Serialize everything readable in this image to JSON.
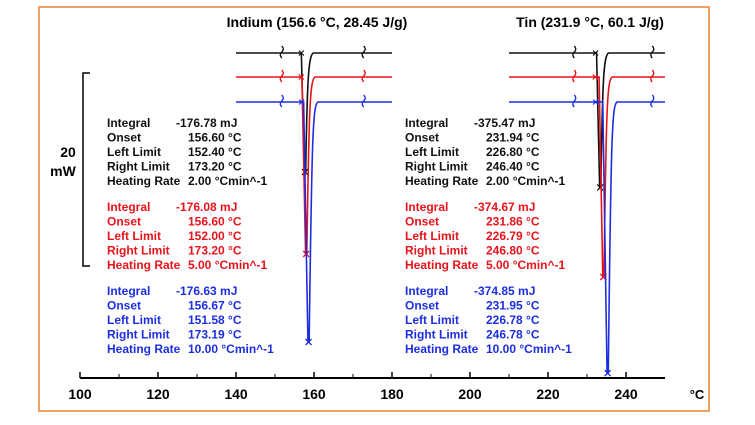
{
  "chart_data": {
    "type": "line",
    "x_unit": "°C",
    "x_ticks": [
      100,
      120,
      140,
      160,
      180,
      200,
      220,
      240
    ],
    "xlim": [
      100,
      250
    ],
    "scale_bar": [
      "20",
      "mW"
    ],
    "panels": [
      {
        "title": "Indium (156.6 °C, 28.45 J/g)",
        "line_xlim": [
          140,
          180
        ],
        "limit_markers": [
          152,
          173
        ],
        "series": [
          {
            "color": "#111111",
            "onset": 156.6,
            "left_limit": 152.4,
            "right_limit": 173.2,
            "heating_rate": 2.0,
            "peak_x": 157.7,
            "rows": [
              [
                "Integral",
                "-176.78 mJ"
              ],
              [
                "Onset",
                "156.60 °C"
              ],
              [
                "Left Limit",
                "152.40 °C"
              ],
              [
                "Right Limit",
                "173.20 °C"
              ],
              [
                "Heating Rate",
                "2.00 °Cmin^-1"
              ]
            ]
          },
          {
            "color": "#e8131b",
            "onset": 156.6,
            "left_limit": 152.0,
            "right_limit": 173.2,
            "heating_rate": 5.0,
            "peak_x": 158.0,
            "rows": [
              [
                "Integral",
                "-176.08 mJ"
              ],
              [
                "Onset",
                "156.60 °C"
              ],
              [
                "Left Limit",
                "152.00 °C"
              ],
              [
                "Right Limit",
                "173.20 °C"
              ],
              [
                "Heating Rate",
                "5.00 °Cmin^-1"
              ]
            ]
          },
          {
            "color": "#1c2ee0",
            "onset": 156.67,
            "left_limit": 151.58,
            "right_limit": 173.19,
            "heating_rate": 10.0,
            "peak_x": 158.6,
            "rows": [
              [
                "Integral",
                "-176.63 mJ"
              ],
              [
                "Onset",
                "156.67 °C"
              ],
              [
                "Left Limit",
                "151.58 °C"
              ],
              [
                "Right Limit",
                "173.19 °C"
              ],
              [
                "Heating Rate",
                "10.00 °Cmin^-1"
              ]
            ]
          }
        ]
      },
      {
        "title": "Tin (231.9 °C, 60.1 J/g)",
        "line_xlim": [
          210,
          250
        ],
        "limit_markers": [
          227,
          247
        ],
        "series": [
          {
            "color": "#111111",
            "onset": 231.94,
            "left_limit": 226.8,
            "right_limit": 246.4,
            "heating_rate": 2.0,
            "peak_x": 233.4,
            "rows": [
              [
                "Integral",
                "-375.47 mJ"
              ],
              [
                "Onset",
                "231.94 °C"
              ],
              [
                "Left Limit",
                "226.80 °C"
              ],
              [
                "Right Limit",
                "246.40 °C"
              ],
              [
                "Heating Rate",
                "2.00 °Cmin^-1"
              ]
            ]
          },
          {
            "color": "#e8131b",
            "onset": 231.86,
            "left_limit": 226.79,
            "right_limit": 246.8,
            "heating_rate": 5.0,
            "peak_x": 234.2,
            "rows": [
              [
                "Integral",
                "-374.67 mJ"
              ],
              [
                "Onset",
                "231.86 °C"
              ],
              [
                "Left Limit",
                "226.79 °C"
              ],
              [
                "Right Limit",
                "246.80 °C"
              ],
              [
                "Heating Rate",
                "5.00 °Cmin^-1"
              ]
            ]
          },
          {
            "color": "#1c2ee0",
            "onset": 231.95,
            "left_limit": 226.78,
            "right_limit": 246.78,
            "heating_rate": 10.0,
            "peak_x": 235.3,
            "rows": [
              [
                "Integral",
                "-374.85 mJ"
              ],
              [
                "Onset",
                "231.95 °C"
              ],
              [
                "Left Limit",
                "226.78 °C"
              ],
              [
                "Right Limit",
                "246.78 °C"
              ],
              [
                "Heating Rate",
                "10.00 °Cmin^-1"
              ]
            ]
          }
        ]
      }
    ]
  }
}
